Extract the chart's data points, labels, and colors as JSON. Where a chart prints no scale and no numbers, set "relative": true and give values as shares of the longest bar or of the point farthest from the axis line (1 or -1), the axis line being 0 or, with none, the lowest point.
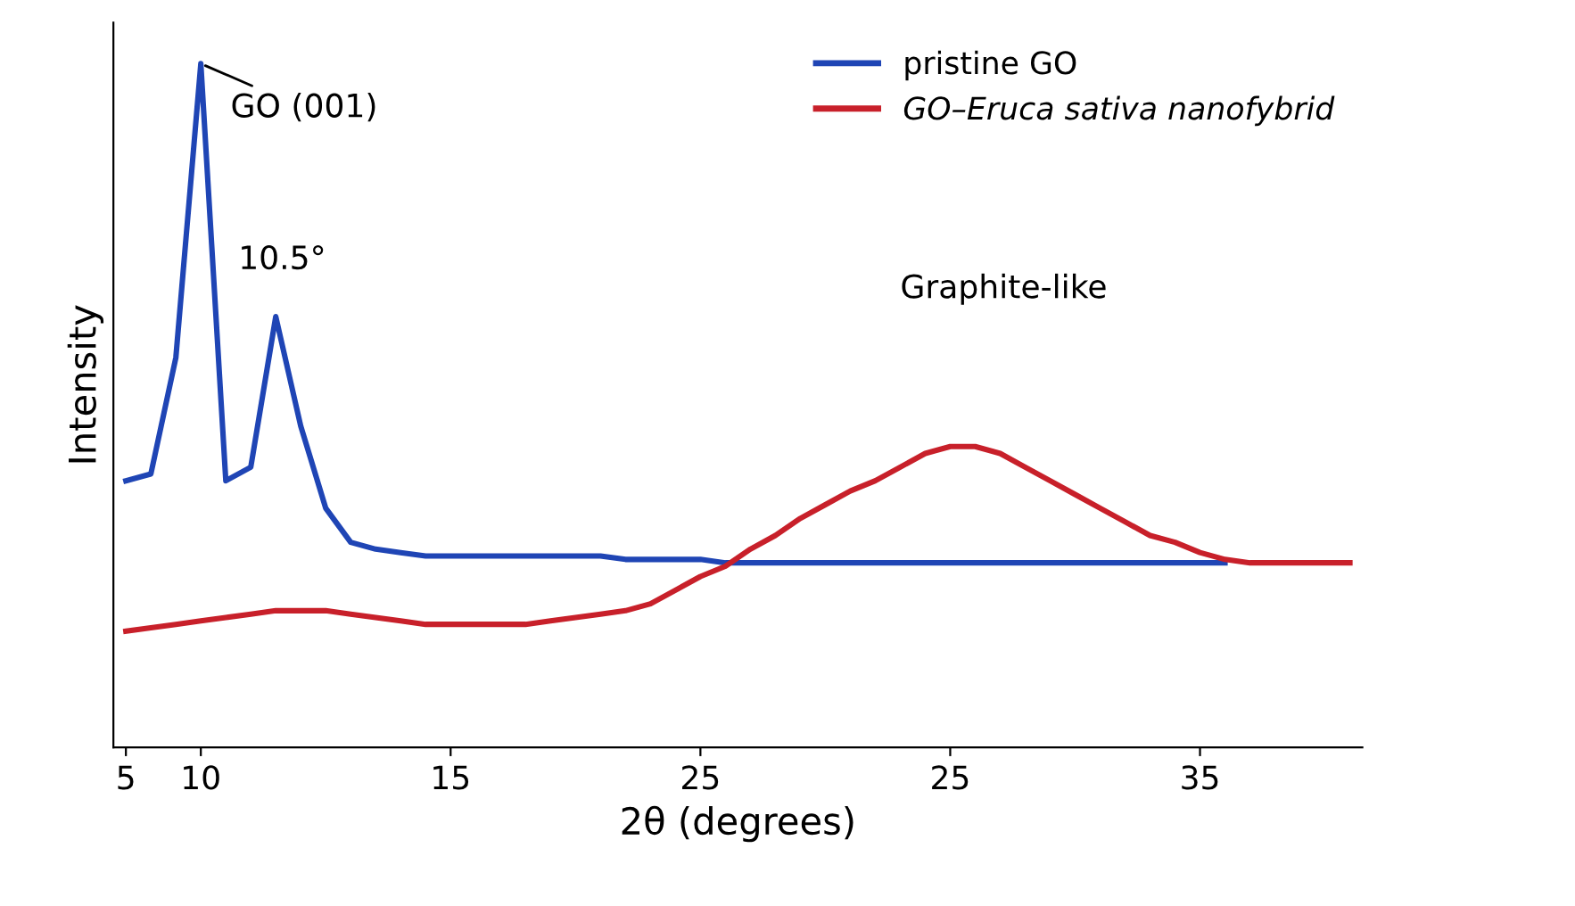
{
  "chart_data": {
    "type": "line",
    "relative": true,
    "xlabel": "2θ (degrees)",
    "ylabel": "Intensity",
    "categories": [
      "5",
      null,
      null,
      "10",
      null,
      null,
      null,
      null,
      null,
      null,
      null,
      null,
      null,
      "15",
      null,
      null,
      null,
      null,
      null,
      null,
      null,
      null,
      null,
      "25",
      null,
      null,
      null,
      null,
      null,
      null,
      null,
      null,
      null,
      "25",
      null,
      null,
      null,
      null,
      null,
      null,
      null,
      null,
      null,
      "35",
      null,
      null,
      null,
      null,
      null,
      null
    ],
    "legend": "top right",
    "series": [
      {
        "name": "pristine GO",
        "color": "#1f45b5",
        "values": [
          0.39,
          0.4,
          0.57,
          1,
          0.39,
          0.41,
          0.63,
          0.47,
          0.35,
          0.3,
          0.29,
          0.285,
          0.28,
          0.28,
          0.28,
          0.28,
          0.28,
          0.28,
          0.28,
          0.28,
          0.275,
          0.275,
          0.275,
          0.275,
          0.27,
          0.27,
          0.27,
          0.27,
          0.27,
          0.27,
          0.27,
          0.27,
          0.27,
          0.27,
          0.27,
          0.27,
          0.27,
          0.27,
          0.27,
          0.27,
          0.27,
          0.27,
          0.27,
          0.27,
          0.27,
          null,
          null,
          null,
          null,
          null
        ]
      },
      {
        "name": "GO–Eruca sativa nanofybrid",
        "color": "#c8202a",
        "values": [
          0.17,
          0.175,
          0.18,
          0.185,
          0.19,
          0.195,
          0.2,
          0.2,
          0.2,
          0.195,
          0.19,
          0.185,
          0.18,
          0.18,
          0.18,
          0.18,
          0.18,
          0.185,
          0.19,
          0.195,
          0.2,
          0.21,
          0.23,
          0.25,
          0.265,
          0.29,
          0.31,
          0.335,
          0.355,
          0.375,
          0.39,
          0.41,
          0.43,
          0.44,
          0.44,
          0.43,
          0.41,
          0.39,
          0.37,
          0.35,
          0.33,
          0.31,
          0.3,
          0.285,
          0.275,
          0.27,
          0.27,
          0.27,
          0.27,
          0.27
        ]
      }
    ],
    "annotations": [
      {
        "text": "GO (001)",
        "x": "10",
        "y": 1
      },
      "10.5°",
      "Graphite-like"
    ]
  }
}
